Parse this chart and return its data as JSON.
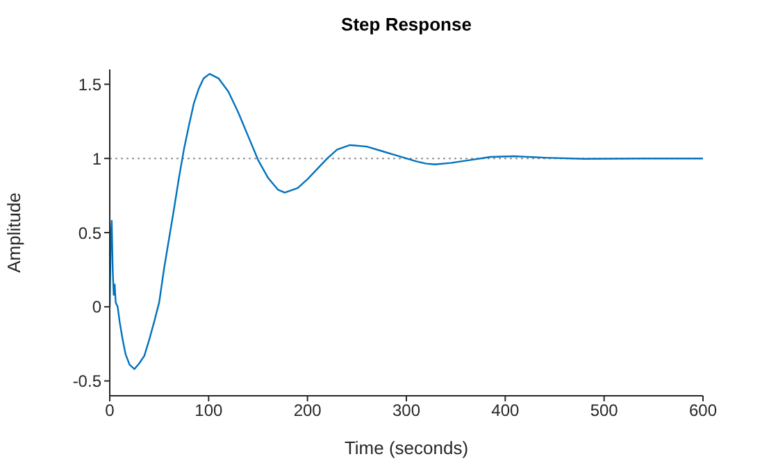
{
  "chart_data": {
    "type": "line",
    "title": "Step Response",
    "xlabel": "Time (seconds)",
    "ylabel": "Amplitude",
    "xlim": [
      0,
      600
    ],
    "xticks": [
      0,
      100,
      200,
      300,
      400,
      500,
      600
    ],
    "ylim": [
      -0.6,
      1.6
    ],
    "yticks": [
      -0.5,
      0,
      0.5,
      1,
      1.5
    ],
    "grid": false,
    "legend": false,
    "marker": "none",
    "line_style": "solid",
    "ref_lines": [
      {
        "axis": "y",
        "value": 1,
        "color": "#909090",
        "line_style": "dotted"
      }
    ],
    "series": [
      {
        "color": "#0072bd",
        "x": [
          0,
          1,
          2,
          3,
          4,
          5,
          6,
          8,
          10,
          13,
          16,
          20,
          25,
          30,
          35,
          40,
          45,
          50,
          55,
          60,
          65,
          70,
          75,
          80,
          85,
          90,
          95,
          101,
          110,
          120,
          130,
          140,
          150,
          160,
          170,
          177,
          190,
          200,
          210,
          220,
          230,
          243,
          260,
          275,
          290,
          300,
          310,
          320,
          329,
          345,
          365,
          385,
          409,
          440,
          480,
          540,
          600
        ],
        "values": [
          0,
          0.45,
          0.58,
          0.25,
          0.08,
          0.15,
          0.03,
          0,
          -0.1,
          -0.22,
          -0.32,
          -0.39,
          -0.42,
          -0.38,
          -0.33,
          -0.22,
          -0.1,
          0.03,
          0.26,
          0.46,
          0.66,
          0.87,
          1.06,
          1.22,
          1.37,
          1.47,
          1.54,
          1.57,
          1.54,
          1.45,
          1.31,
          1.15,
          0.99,
          0.87,
          0.79,
          0.77,
          0.8,
          0.86,
          0.93,
          1,
          1.06,
          1.09,
          1.08,
          1.05,
          1.02,
          1,
          0.98,
          0.965,
          0.96,
          0.97,
          0.99,
          1.01,
          1.015,
          1.005,
          0.997,
          1,
          1
        ]
      }
    ]
  }
}
